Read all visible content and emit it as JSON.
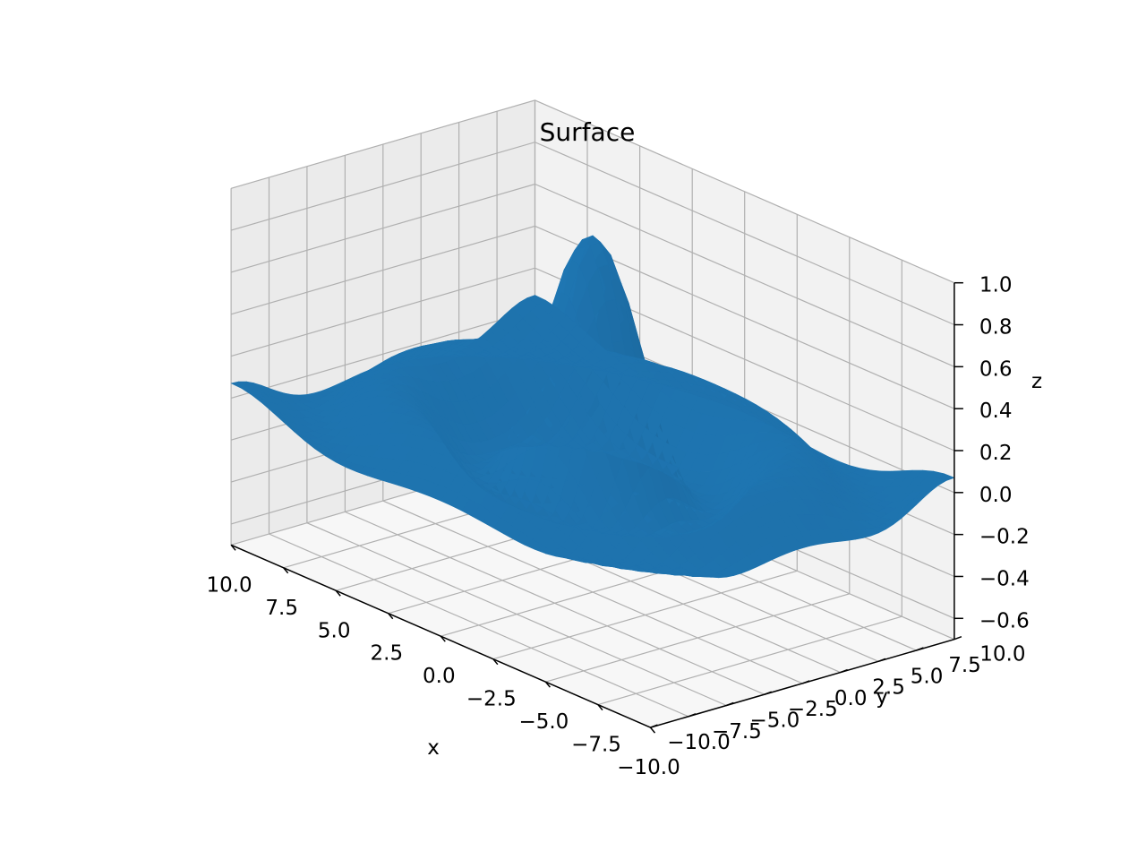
{
  "chart_data": {
    "type": "surface",
    "title": "Surface",
    "xlabel": "x",
    "ylabel": "y",
    "zlabel": "z",
    "function": "sin(sqrt(x^2 + y^2)) / sqrt(x^2 + y^2)",
    "x_range": [
      -10,
      10
    ],
    "y_range": [
      -10,
      10
    ],
    "zlim": [
      -0.7,
      1.0
    ],
    "grid_step": 0.5,
    "x_ticks": [
      -10.0,
      -7.5,
      -5.0,
      -2.5,
      0.0,
      2.5,
      5.0,
      7.5,
      10.0
    ],
    "x_tick_labels": [
      "−10.0",
      "−7.5",
      "−5.0",
      "−2.5",
      "0.0",
      "2.5",
      "5.0",
      "7.5",
      "10.0"
    ],
    "y_ticks": [
      -10.0,
      -7.5,
      -5.0,
      -2.5,
      0.0,
      2.5,
      5.0,
      7.5,
      10.0
    ],
    "y_tick_labels": [
      "−10.0",
      "−7.5",
      "−5.0",
      "−2.5",
      "0.0",
      "2.5",
      "5.0",
      "7.5",
      "10.0"
    ],
    "z_ticks": [
      -0.6,
      -0.4,
      -0.2,
      0.0,
      0.2,
      0.4,
      0.6,
      0.8,
      1.0
    ],
    "z_tick_labels": [
      "−0.6",
      "−0.4",
      "−0.2",
      "0.0",
      "0.2",
      "0.4",
      "0.6",
      "0.8",
      "1.0"
    ],
    "grid": true,
    "colors": {
      "surface": "#1f77b4",
      "pane_left": "#ebebeb",
      "pane_right": "#f2f2f2",
      "pane_floor": "#f7f7f7",
      "grid": "#b0b0b0"
    }
  }
}
